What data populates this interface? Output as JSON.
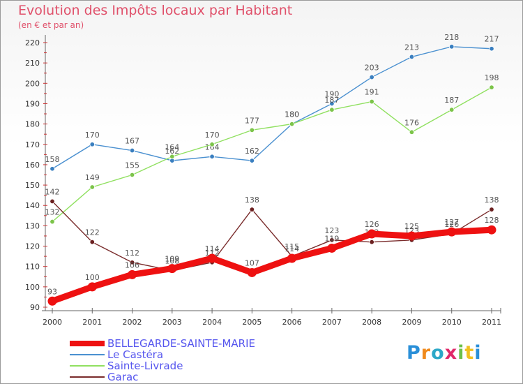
{
  "chart_data": {
    "type": "line",
    "title": "Evolution des Impôts locaux par Habitant",
    "subtitle": "(en € et par an)",
    "xlabel": "",
    "ylabel": "",
    "ylim": [
      90,
      220
    ],
    "yticks": [
      90,
      100,
      110,
      120,
      130,
      140,
      150,
      160,
      170,
      180,
      190,
      200,
      210,
      220
    ],
    "categories": [
      "2000",
      "2001",
      "2002",
      "2003",
      "2004",
      "2005",
      "2006",
      "2007",
      "2008",
      "2009",
      "2010",
      "2011"
    ],
    "series": [
      {
        "name": "Le Castéra",
        "color": "#4a90d0",
        "dot": "#3a7fc0",
        "values": [
          158,
          170,
          167,
          162,
          164,
          162,
          180,
          190,
          203,
          213,
          218,
          217
        ]
      },
      {
        "name": "Sainte-Livrade",
        "color": "#90e060",
        "dot": "#7cc44a",
        "values": [
          132,
          149,
          155,
          164,
          170,
          177,
          180,
          187,
          191,
          176,
          187,
          198
        ]
      },
      {
        "name": "Garac",
        "color": "#7a2c2c",
        "dot": "#6b2020",
        "values": [
          142,
          122,
          112,
          108,
          112,
          138,
          115,
          123,
          122,
          123,
          126,
          138
        ]
      },
      {
        "name": "BELLEGARDE-SAINTE-MARIE",
        "color": "#ee1111",
        "dot": "#ee1111",
        "bold": true,
        "values": [
          93,
          100,
          106,
          109,
          114,
          107,
          114,
          119,
          126,
          125,
          127,
          128
        ]
      }
    ],
    "legend_position": "bottom-left",
    "grid": false
  },
  "legend": {
    "items": [
      {
        "label": "BELLEGARDE-SAINTE-MARIE",
        "color": "#ee1111"
      },
      {
        "label": "Le Castéra",
        "color": "#4a90d0"
      },
      {
        "label": "Sainte-Livrade",
        "color": "#90e060"
      },
      {
        "label": "Garac",
        "color": "#7a2c2c"
      }
    ]
  },
  "logo": {
    "letters": [
      "P",
      "r",
      "o",
      "x",
      "i",
      "t",
      "i"
    ],
    "colors": [
      "#2a8fd8",
      "#f08a1c",
      "#2ca8c8",
      "#e02a6a",
      "#6cc04a",
      "#f0c020",
      "#2a8fd8"
    ]
  }
}
